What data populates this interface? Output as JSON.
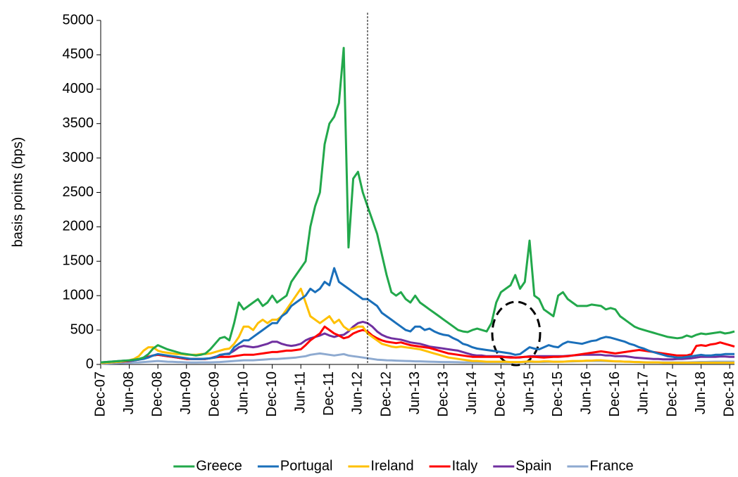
{
  "chart_data": {
    "type": "line",
    "y_label": "basis points (bps)",
    "ylim": [
      0,
      5000
    ],
    "yticks": [
      0,
      500,
      1000,
      1500,
      2000,
      2500,
      3000,
      3500,
      4000,
      4500,
      5000
    ],
    "xlim": [
      "2007-12",
      "2019-01"
    ],
    "xticks": [
      {
        "value": "2007-12",
        "label": "Dec-07"
      },
      {
        "value": "2008-06",
        "label": "Jun-08"
      },
      {
        "value": "2008-12",
        "label": "Dec-08"
      },
      {
        "value": "2009-06",
        "label": "Jun-09"
      },
      {
        "value": "2009-12",
        "label": "Dec-09"
      },
      {
        "value": "2010-06",
        "label": "Jun-10"
      },
      {
        "value": "2010-12",
        "label": "Dec-10"
      },
      {
        "value": "2011-06",
        "label": "Jun-11"
      },
      {
        "value": "2011-12",
        "label": "Dec-11"
      },
      {
        "value": "2012-06",
        "label": "Jun-12"
      },
      {
        "value": "2012-12",
        "label": "Dec-12"
      },
      {
        "value": "2013-06",
        "label": "Jun-13"
      },
      {
        "value": "2013-12",
        "label": "Dec-13"
      },
      {
        "value": "2014-06",
        "label": "Jun-14"
      },
      {
        "value": "2014-12",
        "label": "Dec-14"
      },
      {
        "value": "2015-06",
        "label": "Jun-15"
      },
      {
        "value": "2015-12",
        "label": "Dec-15"
      },
      {
        "value": "2016-06",
        "label": "Jun-16"
      },
      {
        "value": "2016-12",
        "label": "Dec-16"
      },
      {
        "value": "2017-06",
        "label": "Jun-17"
      },
      {
        "value": "2017-12",
        "label": "Dec-17"
      },
      {
        "value": "2018-06",
        "label": "Jun-18"
      },
      {
        "value": "2018-12",
        "label": "Dec-18"
      }
    ],
    "vline": "2012-08",
    "grid": false,
    "legend": "bottom",
    "x": [
      "2007-12",
      "2008-01",
      "2008-02",
      "2008-03",
      "2008-04",
      "2008-05",
      "2008-06",
      "2008-07",
      "2008-08",
      "2008-09",
      "2008-10",
      "2008-11",
      "2008-12",
      "2009-01",
      "2009-02",
      "2009-03",
      "2009-04",
      "2009-05",
      "2009-06",
      "2009-07",
      "2009-08",
      "2009-09",
      "2009-10",
      "2009-11",
      "2009-12",
      "2010-01",
      "2010-02",
      "2010-03",
      "2010-04",
      "2010-05",
      "2010-06",
      "2010-07",
      "2010-08",
      "2010-09",
      "2010-10",
      "2010-11",
      "2010-12",
      "2011-01",
      "2011-02",
      "2011-03",
      "2011-04",
      "2011-05",
      "2011-06",
      "2011-07",
      "2011-08",
      "2011-09",
      "2011-10",
      "2011-11",
      "2011-12",
      "2012-01",
      "2012-02",
      "2012-03",
      "2012-04",
      "2012-05",
      "2012-06",
      "2012-07",
      "2012-08",
      "2012-09",
      "2012-10",
      "2012-11",
      "2012-12",
      "2013-01",
      "2013-02",
      "2013-03",
      "2013-04",
      "2013-05",
      "2013-06",
      "2013-07",
      "2013-08",
      "2013-09",
      "2013-10",
      "2013-11",
      "2013-12",
      "2014-01",
      "2014-02",
      "2014-03",
      "2014-04",
      "2014-05",
      "2014-06",
      "2014-07",
      "2014-08",
      "2014-09",
      "2014-10",
      "2014-11",
      "2014-12",
      "2015-01",
      "2015-02",
      "2015-03",
      "2015-04",
      "2015-05",
      "2015-06",
      "2015-07",
      "2015-08",
      "2015-09",
      "2015-10",
      "2015-11",
      "2015-12",
      "2016-01",
      "2016-02",
      "2016-03",
      "2016-04",
      "2016-05",
      "2016-06",
      "2016-07",
      "2016-08",
      "2016-09",
      "2016-10",
      "2016-11",
      "2016-12",
      "2017-01",
      "2017-02",
      "2017-03",
      "2017-04",
      "2017-05",
      "2017-06",
      "2017-07",
      "2017-08",
      "2017-09",
      "2017-10",
      "2017-11",
      "2017-12",
      "2018-01",
      "2018-02",
      "2018-03",
      "2018-04",
      "2018-05",
      "2018-06",
      "2018-07",
      "2018-08",
      "2018-09",
      "2018-10",
      "2018-11",
      "2018-12",
      "2019-01"
    ],
    "series": [
      {
        "name": "Greece",
        "color": "#22a84b",
        "values": [
          30,
          35,
          40,
          45,
          50,
          55,
          60,
          70,
          80,
          100,
          150,
          230,
          280,
          250,
          220,
          200,
          180,
          160,
          150,
          140,
          130,
          140,
          160,
          220,
          300,
          380,
          400,
          350,
          600,
          900,
          800,
          850,
          900,
          950,
          850,
          900,
          1000,
          900,
          950,
          1000,
          1200,
          1300,
          1400,
          1500,
          2000,
          2300,
          2500,
          3200,
          3500,
          3600,
          3800,
          4600,
          1700,
          2700,
          2800,
          2500,
          2300,
          2100,
          1900,
          1600,
          1300,
          1050,
          1000,
          1050,
          950,
          900,
          1000,
          900,
          850,
          800,
          750,
          700,
          650,
          600,
          550,
          500,
          480,
          470,
          500,
          520,
          500,
          480,
          600,
          900,
          1050,
          1100,
          1150,
          1300,
          1100,
          1200,
          1800,
          1000,
          950,
          800,
          750,
          700,
          1000,
          1050,
          950,
          900,
          850,
          850,
          850,
          870,
          860,
          850,
          800,
          820,
          800,
          700,
          650,
          600,
          550,
          520,
          500,
          480,
          460,
          440,
          420,
          400,
          390,
          380,
          390,
          420,
          400,
          430,
          450,
          440,
          450,
          460,
          470,
          450,
          460,
          480
        ]
      },
      {
        "name": "Portugal",
        "color": "#1a6fba",
        "values": [
          30,
          35,
          40,
          45,
          50,
          55,
          55,
          60,
          70,
          80,
          100,
          130,
          150,
          140,
          130,
          120,
          110,
          100,
          90,
          80,
          80,
          80,
          85,
          90,
          100,
          140,
          150,
          150,
          250,
          300,
          350,
          350,
          400,
          450,
          500,
          550,
          600,
          600,
          700,
          750,
          850,
          900,
          950,
          1000,
          1100,
          1050,
          1100,
          1200,
          1150,
          1400,
          1200,
          1150,
          1100,
          1050,
          1000,
          950,
          950,
          900,
          850,
          750,
          700,
          650,
          600,
          550,
          500,
          480,
          550,
          550,
          500,
          520,
          480,
          450,
          430,
          420,
          380,
          350,
          300,
          280,
          250,
          230,
          220,
          210,
          200,
          190,
          180,
          170,
          160,
          140,
          150,
          200,
          250,
          230,
          220,
          250,
          280,
          260,
          250,
          300,
          330,
          320,
          310,
          300,
          320,
          340,
          350,
          380,
          400,
          390,
          370,
          350,
          330,
          300,
          280,
          250,
          230,
          200,
          180,
          160,
          140,
          120,
          110,
          100,
          100,
          110,
          120,
          130,
          140,
          130,
          130,
          140,
          140,
          150,
          150,
          150
        ]
      },
      {
        "name": "Ireland",
        "color": "#ffc000",
        "values": [
          20,
          25,
          30,
          35,
          40,
          50,
          60,
          80,
          120,
          200,
          250,
          250,
          200,
          180,
          170,
          160,
          150,
          150,
          140,
          140,
          140,
          150,
          150,
          160,
          180,
          200,
          220,
          230,
          300,
          400,
          550,
          550,
          500,
          600,
          650,
          600,
          650,
          650,
          700,
          800,
          900,
          1000,
          1100,
          900,
          700,
          650,
          600,
          650,
          700,
          600,
          650,
          550,
          500,
          520,
          550,
          550,
          450,
          400,
          350,
          300,
          280,
          260,
          250,
          260,
          250,
          240,
          230,
          220,
          200,
          180,
          160,
          140,
          120,
          100,
          90,
          80,
          70,
          60,
          50,
          50,
          45,
          40,
          40,
          40,
          40,
          40,
          35,
          35,
          35,
          40,
          45,
          40,
          40,
          45,
          45,
          40,
          40,
          40,
          45,
          50,
          50,
          50,
          55,
          55,
          60,
          60,
          55,
          50,
          45,
          45,
          40,
          40,
          35,
          35,
          30,
          30,
          30,
          30,
          25,
          25,
          25,
          25,
          25,
          25,
          25,
          25,
          25,
          25,
          25,
          25,
          25,
          25,
          25,
          25
        ]
      },
      {
        "name": "Italy",
        "color": "#ff0000",
        "values": [
          20,
          25,
          30,
          35,
          40,
          45,
          50,
          60,
          70,
          90,
          110,
          130,
          140,
          130,
          120,
          110,
          100,
          90,
          80,
          80,
          80,
          80,
          80,
          90,
          100,
          110,
          110,
          110,
          120,
          130,
          140,
          140,
          140,
          150,
          160,
          170,
          180,
          180,
          190,
          200,
          200,
          210,
          220,
          280,
          350,
          400,
          450,
          550,
          500,
          450,
          420,
          380,
          400,
          450,
          480,
          500,
          480,
          420,
          380,
          350,
          330,
          320,
          310,
          320,
          300,
          280,
          270,
          260,
          250,
          240,
          220,
          200,
          180,
          160,
          150,
          140,
          130,
          120,
          110,
          110,
          110,
          110,
          110,
          110,
          110,
          105,
          100,
          100,
          105,
          110,
          110,
          110,
          105,
          100,
          105,
          110,
          110,
          115,
          120,
          130,
          140,
          150,
          160,
          170,
          180,
          190,
          180,
          170,
          160,
          170,
          180,
          190,
          200,
          210,
          200,
          190,
          180,
          170,
          160,
          150,
          140,
          130,
          130,
          130,
          150,
          270,
          280,
          270,
          290,
          300,
          320,
          300,
          280,
          260
        ]
      },
      {
        "name": "Spain",
        "color": "#7030a0",
        "values": [
          20,
          25,
          30,
          35,
          40,
          45,
          50,
          60,
          70,
          90,
          110,
          130,
          140,
          130,
          120,
          110,
          100,
          90,
          80,
          80,
          80,
          80,
          80,
          90,
          110,
          130,
          150,
          160,
          200,
          250,
          270,
          260,
          250,
          260,
          280,
          300,
          330,
          330,
          300,
          280,
          270,
          280,
          300,
          350,
          380,
          400,
          420,
          450,
          420,
          400,
          420,
          430,
          480,
          550,
          600,
          620,
          600,
          550,
          480,
          430,
          400,
          380,
          370,
          360,
          340,
          320,
          310,
          300,
          280,
          260,
          250,
          240,
          230,
          220,
          210,
          200,
          180,
          160,
          140,
          130,
          130,
          120,
          120,
          120,
          120,
          110,
          110,
          100,
          100,
          110,
          120,
          120,
          120,
          120,
          120,
          120,
          120,
          120,
          125,
          130,
          135,
          140,
          140,
          140,
          140,
          140,
          130,
          130,
          120,
          120,
          120,
          110,
          100,
          95,
          90,
          85,
          80,
          80,
          75,
          75,
          75,
          80,
          80,
          85,
          90,
          100,
          110,
          110,
          110,
          110,
          115,
          115,
          110,
          110
        ]
      },
      {
        "name": "France",
        "color": "#8eaad0",
        "values": [
          10,
          12,
          15,
          18,
          20,
          22,
          25,
          28,
          30,
          35,
          40,
          45,
          50,
          45,
          40,
          38,
          35,
          33,
          30,
          28,
          28,
          30,
          30,
          30,
          32,
          35,
          40,
          45,
          50,
          55,
          60,
          60,
          60,
          65,
          70,
          75,
          80,
          80,
          85,
          90,
          95,
          100,
          110,
          120,
          140,
          150,
          160,
          150,
          140,
          130,
          140,
          150,
          130,
          120,
          110,
          100,
          90,
          80,
          70,
          65,
          60,
          58,
          55,
          52,
          50,
          48,
          45,
          45,
          42,
          40,
          38,
          36,
          35,
          35,
          33,
          32,
          30,
          30,
          30,
          30,
          30,
          30,
          30,
          30,
          30,
          30,
          30,
          30,
          32,
          34,
          36,
          36,
          36,
          36,
          38,
          38,
          38,
          40,
          42,
          44,
          46,
          48,
          50,
          50,
          50,
          50,
          48,
          46,
          44,
          42,
          40,
          38,
          36,
          34,
          32,
          30,
          30,
          30,
          30,
          30,
          30,
          30,
          30,
          30,
          32,
          34,
          36,
          36,
          38,
          40,
          40,
          40,
          40,
          40
        ]
      }
    ]
  }
}
